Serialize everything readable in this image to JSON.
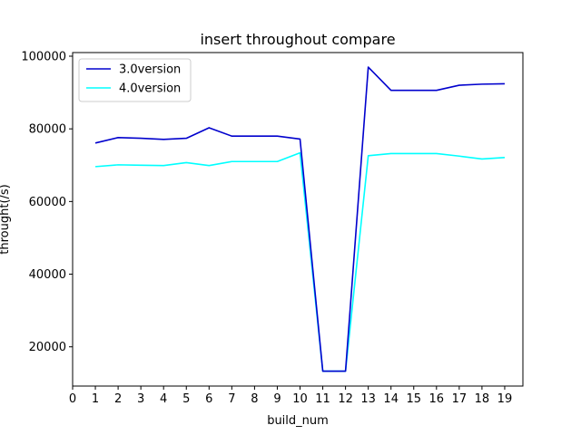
{
  "chart_data": {
    "type": "line",
    "title": "insert throughout compare",
    "xlabel": "build_num",
    "ylabel": "throught(/s)",
    "xlim": [
      0,
      19.8
    ],
    "ylim": [
      9200,
      101000
    ],
    "xticks": [
      0,
      1,
      2,
      3,
      4,
      5,
      6,
      7,
      8,
      9,
      10,
      11,
      12,
      13,
      14,
      15,
      16,
      17,
      18,
      19
    ],
    "yticks": [
      20000,
      40000,
      60000,
      80000,
      100000
    ],
    "grid": false,
    "legend": "top-left",
    "x": [
      1,
      2,
      3,
      4,
      5,
      6,
      7,
      8,
      9,
      10,
      11,
      12,
      13,
      14,
      15,
      16,
      17,
      18,
      19
    ],
    "series": [
      {
        "name": "3.0version",
        "color": "#0000cd",
        "values": [
          76100,
          77600,
          77400,
          77100,
          77400,
          80300,
          78000,
          78000,
          78000,
          77200,
          13300,
          13300,
          97000,
          90600,
          90600,
          90600,
          92000,
          92300,
          92400
        ]
      },
      {
        "name": "4.0version",
        "color": "#00ffff",
        "values": [
          69600,
          70100,
          70000,
          69900,
          70700,
          69900,
          71000,
          71000,
          71000,
          73400,
          13300,
          13300,
          72600,
          73200,
          73200,
          73200,
          72500,
          71700,
          72100
        ]
      }
    ]
  }
}
